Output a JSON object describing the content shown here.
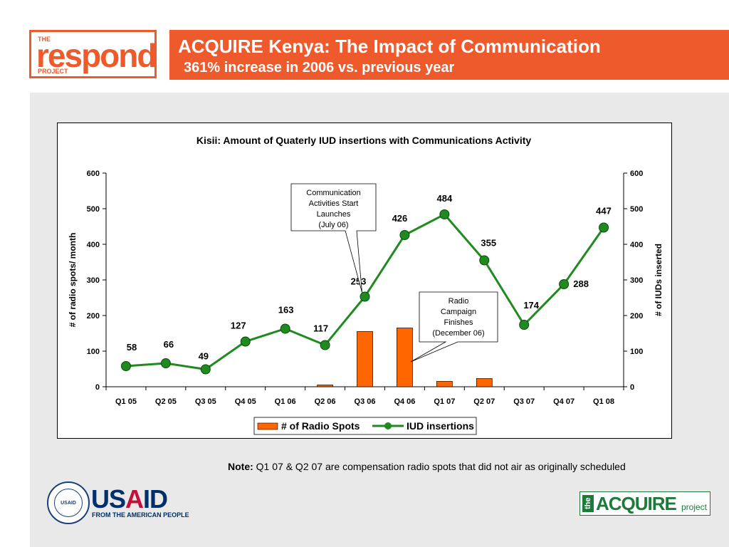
{
  "header": {
    "title": "ACQUIRE Kenya: The Impact of Communication",
    "subtitle": "361% increase in 2006 vs. previous year"
  },
  "logos": {
    "respond_the": "THE",
    "respond_word": "respond",
    "respond_project": "PROJECT",
    "usaid_word": "USAID",
    "usaid_tagline": "FROM THE AMERICAN PEOPLE",
    "usaid_seal_text": "USAID",
    "acquire_the": "the",
    "acquire_word": "ACQUIRE",
    "acquire_project": "project"
  },
  "note": {
    "label": "Note:",
    "text": " Q1 07 & Q2 07 are compensation radio spots that did not air as originally scheduled"
  },
  "colors": {
    "brand_orange": "#ee5a2c",
    "bar_fill": "#ff6600",
    "line_color": "#1f8a1f",
    "usaid_blue": "#002f6c",
    "acquire_green": "#1e7a3a"
  },
  "chart_data": {
    "type": "bar+line",
    "title": "Kisii: Amount of Quaterly IUD insertions with Communications Activity",
    "categories": [
      "Q1 05",
      "Q2 05",
      "Q3 05",
      "Q4 05",
      "Q1 06",
      "Q2 06",
      "Q3 06",
      "Q4 06",
      "Q1 07",
      "Q2 07",
      "Q3 07",
      "Q4 07",
      "Q1 08"
    ],
    "y_left_label": "# of radio spots/ month",
    "y_right_label": "# of IUDs inserted",
    "y_left_ticks": [
      "0",
      "100",
      "200",
      "300",
      "400",
      "500",
      "600"
    ],
    "y_right_ticks": [
      "0",
      "100",
      "200",
      "300",
      "400",
      "500",
      "600"
    ],
    "ylim": [
      0,
      600
    ],
    "grid": false,
    "legend_position": "bottom",
    "series": [
      {
        "name": "# of Radio Spots",
        "type": "bar",
        "axis": "left",
        "values": [
          0,
          0,
          0,
          0,
          0,
          5,
          155,
          165,
          15,
          23,
          0,
          0,
          0
        ]
      },
      {
        "name": "IUD insertions",
        "type": "line",
        "axis": "right",
        "values": [
          58,
          66,
          49,
          127,
          163,
          117,
          253,
          426,
          484,
          355,
          174,
          288,
          447
        ],
        "labels": [
          "58",
          "66",
          "49",
          "127",
          "163",
          "117",
          "253",
          "426",
          "484",
          "355",
          "174",
          "288",
          "447"
        ]
      }
    ],
    "annotations": [
      {
        "text": [
          "Communication",
          "Activities Start",
          "Launches",
          "(July 06)"
        ],
        "points_to": "Q3 06"
      },
      {
        "text": [
          "Radio",
          "Campaign",
          "Finishes",
          "(December 06)"
        ],
        "points_to": "Q4 06"
      }
    ]
  }
}
